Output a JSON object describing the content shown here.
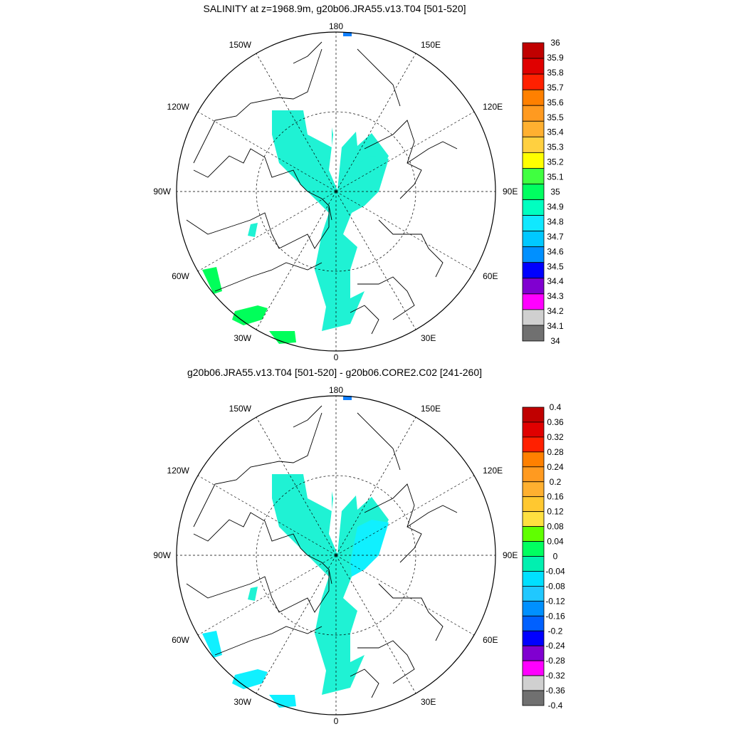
{
  "panels": [
    {
      "title": "SALINITY at z=1968.9m, g20b06.JRA55.v13.T04 [501-520]",
      "lon_labels": {
        "top": "180",
        "bottom": "0",
        "left": "90W",
        "right": "90E",
        "ul": "150W",
        "ur": "150E",
        "lu": "120W",
        "ru": "120E",
        "ll": "60W",
        "lr": "60E",
        "bl": "30W",
        "br": "30E"
      },
      "colorbar": {
        "labels": [
          "36",
          "35.9",
          "35.8",
          "35.7",
          "35.6",
          "35.5",
          "35.4",
          "35.3",
          "35.2",
          "35.1",
          "35",
          "34.9",
          "34.8",
          "34.7",
          "34.6",
          "34.5",
          "34.4",
          "34.3",
          "34.2",
          "34.1",
          "34"
        ],
        "colors": [
          "#c00000",
          "#e00000",
          "#ff2000",
          "#ff8000",
          "#ff9a20",
          "#ffb030",
          "#ffd040",
          "#ffff00",
          "#40ff40",
          "#00ff60",
          "#00ffc0",
          "#10e8ff",
          "#00c8ff",
          "#0090ff",
          "#0000ff",
          "#8000d0",
          "#ff00ff",
          "#d0d0d0",
          "#707070"
        ]
      },
      "fields": {
        "main": "#1ff2d4",
        "side": "#1ff2d4",
        "green": "#00ff5a"
      }
    },
    {
      "title": "g20b06.JRA55.v13.T04 [501-520] - g20b06.CORE2.C02 [241-260]",
      "lon_labels": {
        "top": "180",
        "bottom": "0",
        "left": "90W",
        "right": "90E",
        "ul": "150W",
        "ur": "150E",
        "lu": "120W",
        "ru": "120E",
        "ll": "60W",
        "lr": "60E",
        "bl": "30W",
        "br": "30E"
      },
      "colorbar": {
        "labels": [
          "0.4",
          "0.36",
          "0.32",
          "0.28",
          "0.24",
          "0.2",
          "0.16",
          "0.12",
          "0.08",
          "0.04",
          "0",
          "-0.04",
          "-0.08",
          "-0.12",
          "-0.16",
          "-0.2",
          "-0.24",
          "-0.28",
          "-0.32",
          "-0.36",
          "-0.4"
        ],
        "colors": [
          "#c00000",
          "#e00000",
          "#ff2000",
          "#ff8000",
          "#ff9a20",
          "#ffb030",
          "#ffc830",
          "#ffe040",
          "#60ff00",
          "#00ff60",
          "#00f0b0",
          "#00e0ff",
          "#20c8ff",
          "#0090ff",
          "#0060ff",
          "#0000ff",
          "#8000d0",
          "#ff00ff",
          "#d0d0d0",
          "#707070"
        ]
      },
      "fields": {
        "main": "#1ff2d4",
        "side": "#10f0ff",
        "green": "#10f0ff"
      }
    }
  ]
}
